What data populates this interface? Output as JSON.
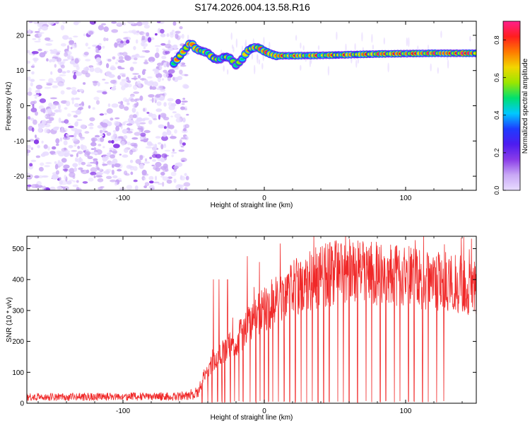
{
  "title": "S174.2026.004.13.58.R16",
  "colors": {
    "snr_line": "#f02828",
    "axis": "#000000",
    "colormap": [
      "#e8dcff",
      "#c9a8f5",
      "#8a3ce8",
      "#4d1cf0",
      "#1e3cff",
      "#00c8ff",
      "#00e070",
      "#9ae600",
      "#f2d600",
      "#ff7a00",
      "#ff1e1e",
      "#ff1e8c"
    ]
  },
  "chart_data": [
    {
      "type": "heatmap",
      "title": "S174.2026.004.13.58.R16",
      "xlabel": "Height of straight line (km)",
      "ylabel": "Frequency (Hz)",
      "xlim": [
        -168,
        150
      ],
      "ylim": [
        -24,
        24
      ],
      "xticks": [
        -100,
        0,
        100
      ],
      "xtick_labels": [
        "-100",
        "0",
        "100"
      ],
      "yticks": [
        20,
        10,
        0,
        -10,
        -20
      ],
      "ytick_labels": [
        "20",
        "10",
        "0",
        "-10",
        "-20"
      ],
      "colorbar": {
        "label": "Normalized spectral amplitude",
        "range": [
          0,
          0.9
        ],
        "ticks": [
          0.0,
          0.2,
          0.4,
          0.6,
          0.8
        ],
        "tick_labels": [
          "0.0",
          "0.2",
          "0.4",
          "0.6",
          "0.8"
        ]
      },
      "noise_region": {
        "x_from": -168,
        "x_to": -54,
        "amplitude": 0.2
      },
      "signal_track": {
        "x": [
          -64,
          -58,
          -52,
          -48,
          -44,
          -40,
          -36,
          -32,
          -28,
          -24,
          -20,
          -16,
          -12,
          -8,
          -4,
          0,
          4,
          8,
          10,
          20,
          40,
          60,
          80,
          100,
          120,
          150
        ],
        "freq": [
          12,
          15,
          18,
          16,
          15.5,
          15,
          13.5,
          13,
          14,
          13.5,
          11.5,
          13,
          15.5,
          16.5,
          16.5,
          15.5,
          14.8,
          14.2,
          14.2,
          14.2,
          14.3,
          14.5,
          14.7,
          14.8,
          14.9,
          14.9
        ],
        "amplitude": [
          0.7,
          0.65,
          0.9,
          0.65,
          0.72,
          0.7,
          0.6,
          0.62,
          0.65,
          0.55,
          0.6,
          0.6,
          0.7,
          0.78,
          0.8,
          0.82,
          0.8,
          0.78,
          0.75,
          0.72,
          0.72,
          0.75,
          0.77,
          0.8,
          0.82,
          0.85
        ]
      }
    },
    {
      "type": "line",
      "xlabel": "Height of straight line (km)",
      "ylabel": "SNR (10 * v/v)",
      "xlim": [
        -168,
        150
      ],
      "ylim": [
        0,
        540
      ],
      "xticks": [
        -100,
        0,
        100
      ],
      "xtick_labels": [
        "-100",
        "0",
        "100"
      ],
      "yticks": [
        0,
        100,
        200,
        300,
        400,
        500
      ],
      "ytick_labels": [
        "0",
        "100",
        "200",
        "300",
        "400",
        "500"
      ],
      "envelope": {
        "x": [
          -168,
          -60,
          -50,
          -46,
          -44,
          -40,
          -35,
          -30,
          -25,
          -20,
          -15,
          -10,
          -5,
          0,
          5,
          10,
          20,
          30,
          40,
          50,
          60,
          70,
          80,
          90,
          100,
          110,
          120,
          130,
          140,
          150
        ],
        "y": [
          20,
          22,
          30,
          35,
          75,
          110,
          140,
          165,
          185,
          205,
          230,
          250,
          280,
          300,
          325,
          345,
          370,
          390,
          410,
          420,
          430,
          425,
          420,
          410,
          405,
          400,
          395,
          390,
          385,
          375
        ],
        "noise_pct": 0.18
      },
      "spikes": [
        {
          "x": -36,
          "y": 400
        },
        {
          "x": -32,
          "y": 400
        },
        {
          "x": -26,
          "y": 400
        },
        {
          "x": -12,
          "y": 475
        }
      ],
      "dropouts_x": [
        -44,
        -40,
        -37,
        -33,
        -30,
        -28,
        -24,
        -21,
        -18,
        -15,
        -10,
        -6,
        -3,
        0,
        3,
        6,
        10,
        14,
        18,
        22,
        26,
        30,
        34,
        38,
        42,
        46,
        52,
        56,
        60,
        66,
        72,
        76,
        82,
        86,
        92,
        96,
        102,
        106,
        112,
        116,
        122,
        127
      ]
    }
  ]
}
